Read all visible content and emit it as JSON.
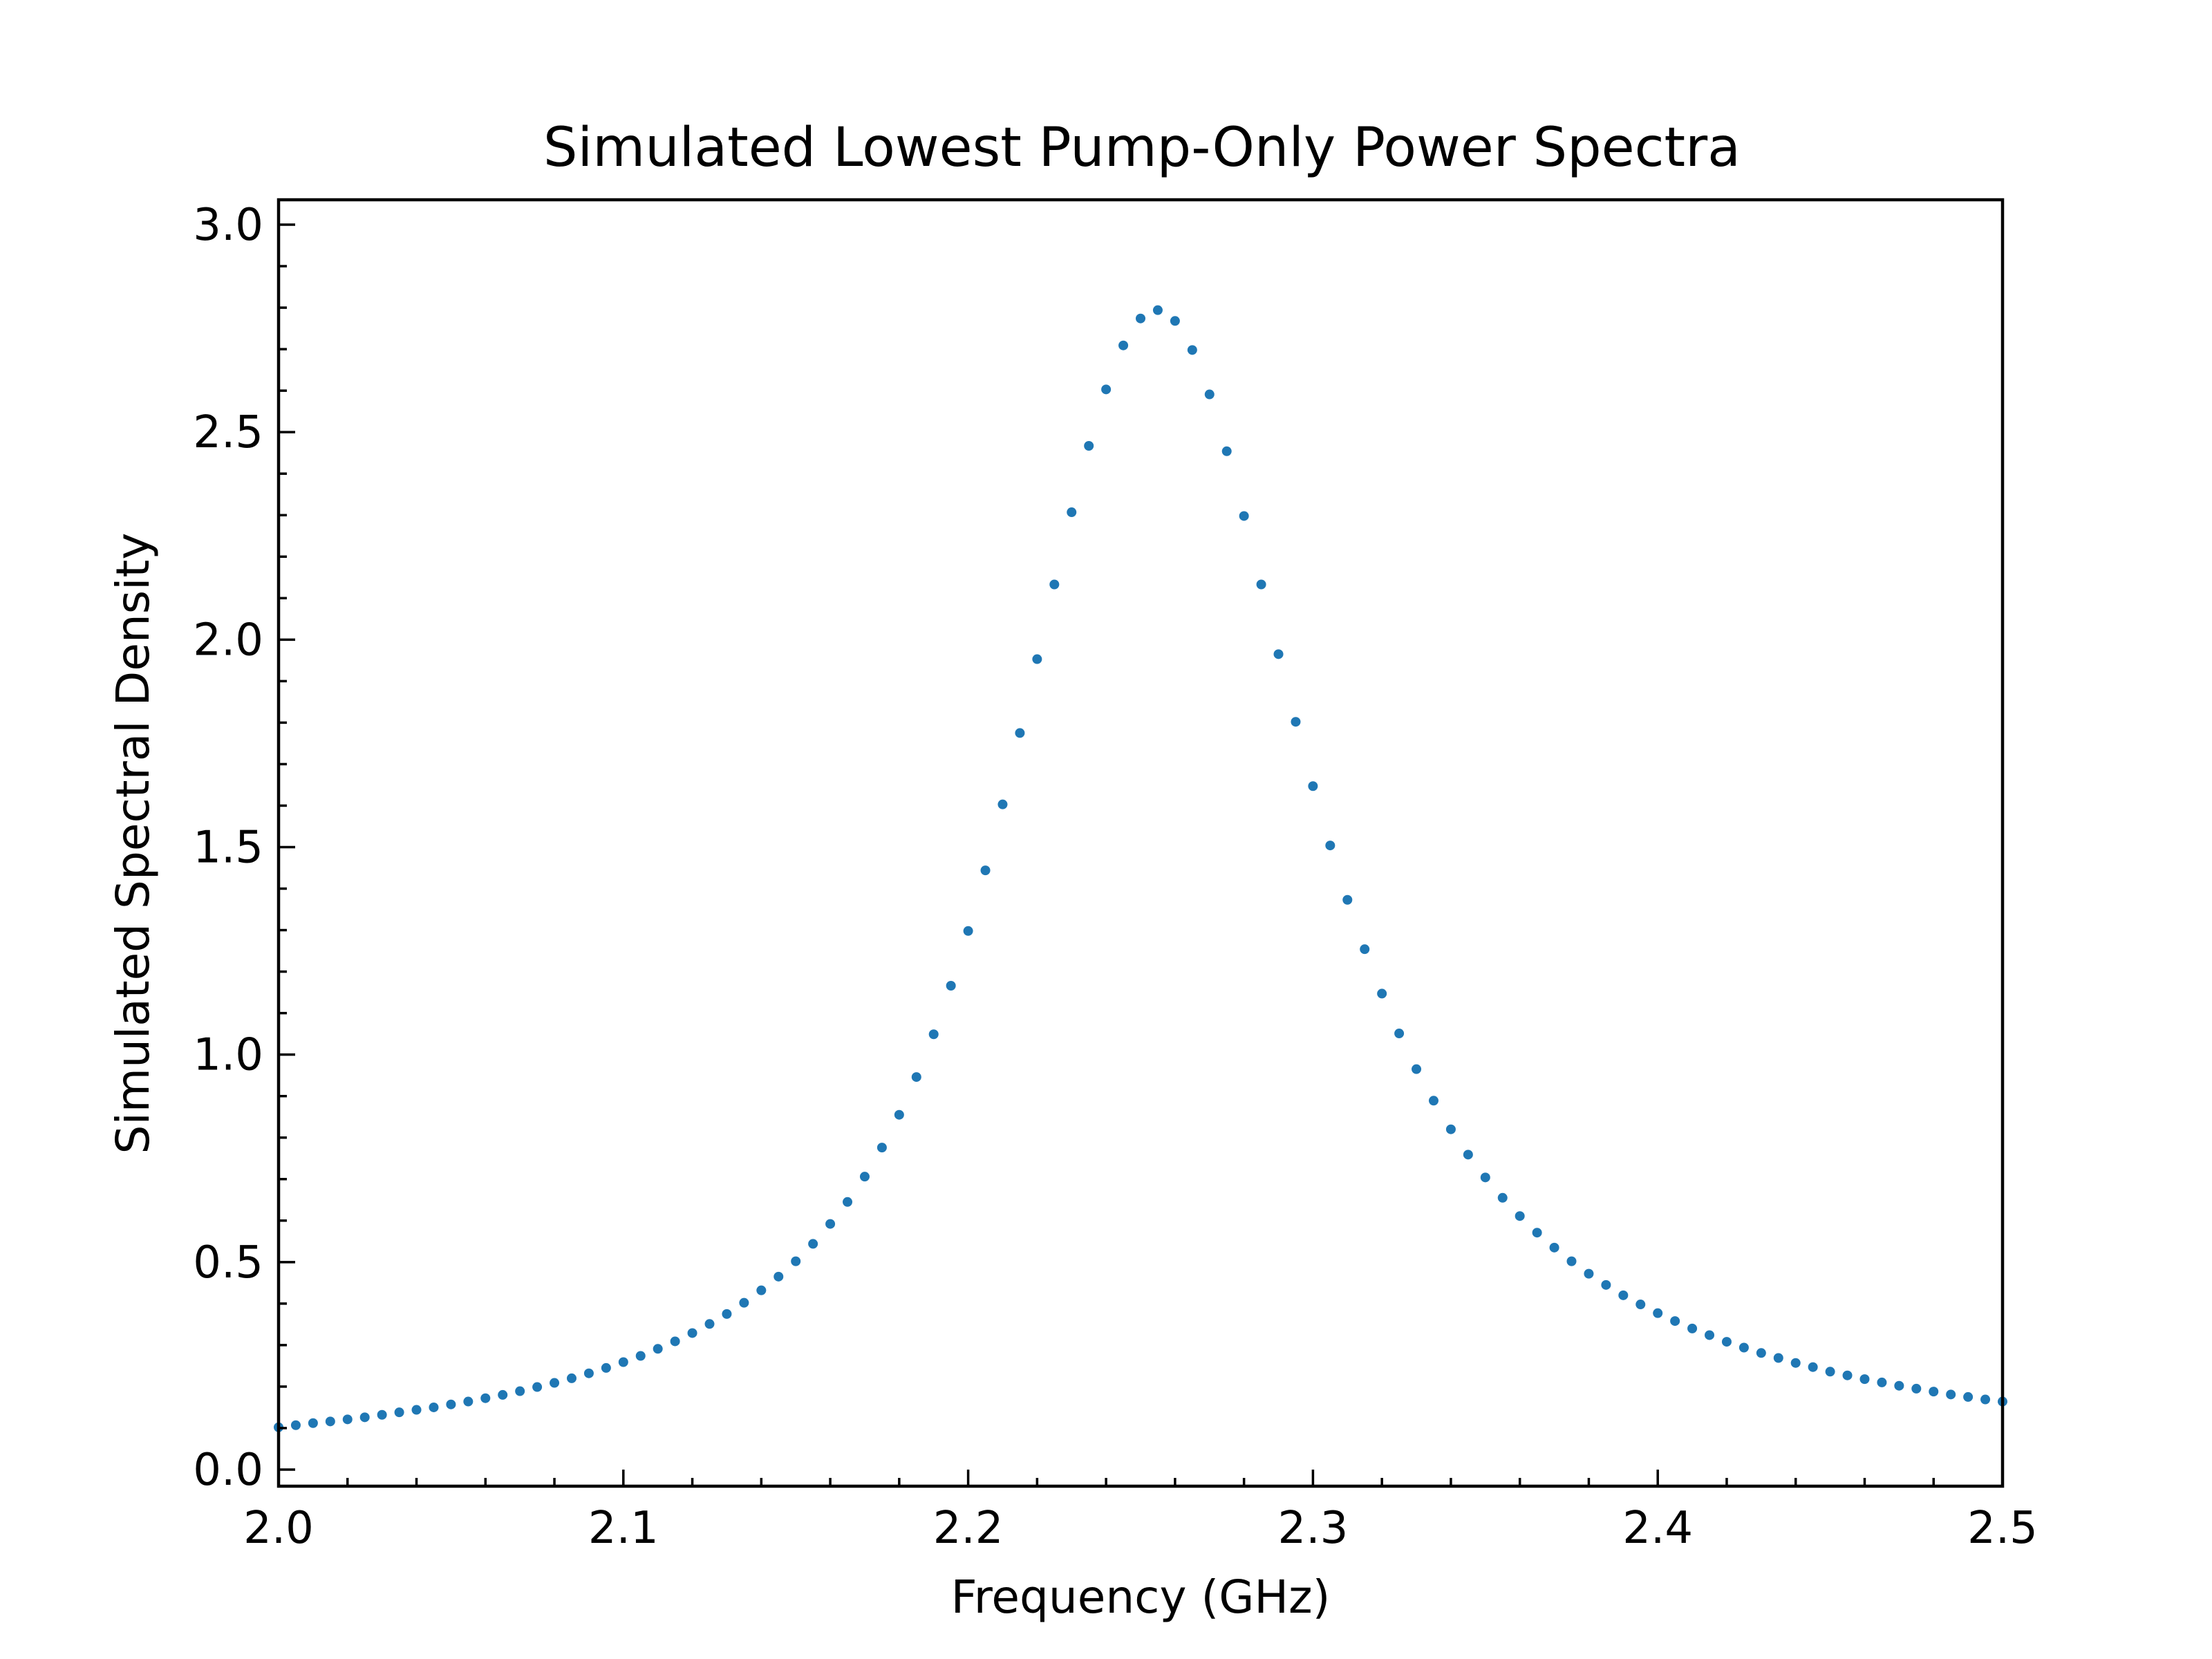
{
  "chart_data": {
    "type": "scatter",
    "title": "Simulated Lowest Pump-Only Power Spectra",
    "xlabel": "Frequency (GHz)",
    "ylabel": "Simulated Spectral Density",
    "xlim": [
      2.0,
      2.5
    ],
    "ylim": [
      -0.04,
      3.06
    ],
    "xticks": [
      2.0,
      2.1,
      2.2,
      2.3,
      2.4,
      2.5
    ],
    "xtick_labels": [
      "2.0",
      "2.1",
      "2.2",
      "2.3",
      "2.4",
      "2.5"
    ],
    "yticks": [
      0.0,
      0.5,
      1.0,
      1.5,
      2.0,
      2.5,
      3.0
    ],
    "ytick_labels": [
      "0.0",
      "0.5",
      "1.0",
      "1.5",
      "2.0",
      "2.5",
      "3.0"
    ],
    "grid": false,
    "color": "#1f77b4",
    "series": [
      {
        "x": [
          2.0,
          2.005,
          2.01,
          2.015,
          2.02,
          2.025,
          2.03,
          2.035,
          2.04,
          2.045,
          2.05,
          2.055,
          2.06,
          2.065,
          2.07,
          2.075,
          2.08,
          2.085,
          2.09,
          2.095,
          2.1,
          2.105,
          2.11,
          2.115,
          2.12,
          2.125,
          2.13,
          2.135,
          2.14,
          2.145,
          2.15,
          2.155,
          2.16,
          2.165,
          2.17,
          2.175,
          2.18,
          2.185,
          2.19,
          2.195,
          2.2,
          2.205,
          2.21,
          2.215,
          2.22,
          2.225,
          2.23,
          2.235,
          2.24,
          2.245,
          2.25,
          2.255,
          2.26,
          2.265,
          2.27,
          2.275,
          2.28,
          2.285,
          2.29,
          2.295,
          2.3,
          2.305,
          2.31,
          2.315,
          2.32,
          2.325,
          2.33,
          2.335,
          2.34,
          2.345,
          2.35,
          2.355,
          2.36,
          2.365,
          2.37,
          2.375,
          2.38,
          2.385,
          2.39,
          2.395,
          2.4,
          2.405,
          2.41,
          2.415,
          2.42,
          2.425,
          2.43,
          2.435,
          2.44,
          2.445,
          2.45,
          2.455,
          2.46,
          2.465,
          2.47,
          2.475,
          2.48,
          2.485,
          2.49,
          2.495,
          2.5
        ],
        "y": [
          0.102,
          0.107,
          0.112,
          0.116,
          0.121,
          0.126,
          0.132,
          0.138,
          0.144,
          0.15,
          0.157,
          0.164,
          0.172,
          0.18,
          0.189,
          0.199,
          0.209,
          0.22,
          0.232,
          0.245,
          0.259,
          0.274,
          0.291,
          0.309,
          0.329,
          0.351,
          0.375,
          0.402,
          0.432,
          0.465,
          0.502,
          0.544,
          0.592,
          0.645,
          0.706,
          0.776,
          0.855,
          0.946,
          1.049,
          1.166,
          1.298,
          1.444,
          1.603,
          1.775,
          1.953,
          2.133,
          2.307,
          2.467,
          2.603,
          2.709,
          2.774,
          2.794,
          2.768,
          2.698,
          2.591,
          2.454,
          2.298,
          2.133,
          1.965,
          1.802,
          1.647,
          1.504,
          1.373,
          1.254,
          1.147,
          1.051,
          0.965,
          0.889,
          0.82,
          0.759,
          0.704,
          0.655,
          0.611,
          0.571,
          0.535,
          0.502,
          0.472,
          0.445,
          0.42,
          0.398,
          0.377,
          0.358,
          0.34,
          0.324,
          0.308,
          0.294,
          0.281,
          0.269,
          0.257,
          0.247,
          0.236,
          0.227,
          0.218,
          0.21,
          0.202,
          0.195,
          0.188,
          0.181,
          0.175,
          0.169,
          0.164
        ]
      }
    ]
  }
}
